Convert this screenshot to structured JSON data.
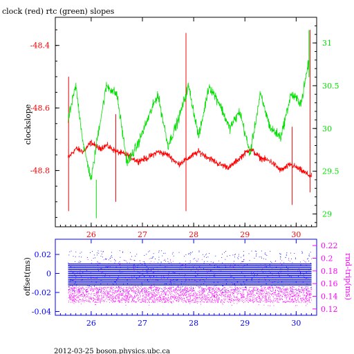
{
  "page_title": "clock (red) rtc (green) slopes",
  "footer": "2012-03-25  boson.physics.ubc.ca",
  "colors": {
    "clock": "#ff0000",
    "rtc": "#00e000",
    "offset": "#0000ff",
    "rndtrip": "#ff00ff",
    "frame": "#000000"
  },
  "chart_data": [
    {
      "type": "line",
      "title": "clock (red) rtc (green) slopes",
      "xlabel": "",
      "xlim": [
        25.3,
        30.4
      ],
      "x_ticks": [
        26,
        27,
        28,
        29,
        30
      ],
      "x_tick_labels": [
        "26",
        "27",
        "28",
        "29",
        "30"
      ],
      "left_axis": {
        "label": "clockslope",
        "ylim": [
          -48.98,
          -48.31
        ],
        "ticks": [
          -48.4,
          -48.6,
          -48.8
        ],
        "tick_labels": [
          "-48.4",
          "-48.6",
          "-48.8"
        ],
        "color": "#ff0000"
      },
      "right_axis": {
        "label": "",
        "ylim": [
          28.85,
          31.3
        ],
        "ticks": [
          29,
          29.5,
          30,
          30.5,
          31
        ],
        "tick_labels": [
          "29",
          "29.5",
          "30",
          "30.5",
          "31"
        ],
        "color": "#00e000"
      },
      "series": [
        {
          "axis": "left",
          "color": "#ff0000",
          "x": [
            25.55,
            25.7,
            25.85,
            26.0,
            26.15,
            26.3,
            26.5,
            26.7,
            26.9,
            27.1,
            27.3,
            27.5,
            27.7,
            27.9,
            28.1,
            28.3,
            28.5,
            28.7,
            28.9,
            29.1,
            29.3,
            29.5,
            29.7,
            29.9,
            30.1,
            30.3
          ],
          "values": [
            -48.76,
            -48.73,
            -48.74,
            -48.71,
            -48.73,
            -48.72,
            -48.74,
            -48.75,
            -48.77,
            -48.76,
            -48.74,
            -48.75,
            -48.78,
            -48.76,
            -48.74,
            -48.76,
            -48.78,
            -48.79,
            -48.76,
            -48.73,
            -48.76,
            -48.77,
            -48.8,
            -48.78,
            -48.8,
            -48.82
          ],
          "spikes": [
            {
              "x": 25.56,
              "values": [
                -48.5,
                -48.93
              ]
            },
            {
              "x": 26.48,
              "values": [
                -48.62,
                -48.9
              ]
            },
            {
              "x": 27.85,
              "values": [
                -48.36,
                -48.93
              ]
            },
            {
              "x": 29.92,
              "values": [
                -48.66,
                -48.91
              ]
            },
            {
              "x": 30.27,
              "values": [
                -48.35,
                -48.87
              ]
            }
          ]
        },
        {
          "axis": "right",
          "color": "#00e000",
          "x": [
            25.55,
            25.7,
            25.85,
            26.0,
            26.15,
            26.3,
            26.5,
            26.7,
            26.9,
            27.1,
            27.3,
            27.5,
            27.7,
            27.9,
            28.1,
            28.3,
            28.5,
            28.7,
            28.9,
            29.1,
            29.3,
            29.5,
            29.7,
            29.9,
            30.1,
            30.25
          ],
          "values": [
            30.1,
            30.5,
            29.8,
            29.4,
            30.0,
            30.5,
            30.4,
            29.6,
            29.8,
            30.1,
            30.4,
            29.8,
            30.1,
            30.5,
            29.9,
            30.5,
            30.3,
            30.0,
            30.2,
            29.7,
            30.4,
            30.0,
            29.9,
            30.4,
            30.3,
            30.8
          ],
          "spikes": [
            {
              "x": 26.1,
              "values": [
                29.4,
                28.95
              ]
            },
            {
              "x": 30.25,
              "values": [
                30.6,
                31.15
              ]
            }
          ]
        }
      ]
    },
    {
      "type": "scatter",
      "xlim": [
        25.3,
        30.4
      ],
      "x_ticks": [
        26,
        27,
        28,
        29,
        30
      ],
      "x_tick_labels": [
        "26",
        "27",
        "28",
        "29",
        "30"
      ],
      "left_axis": {
        "label": "offset(ms)",
        "ylim": [
          -0.044,
          0.036
        ],
        "ticks": [
          0.02,
          0,
          -0.02,
          -0.04
        ],
        "tick_labels": [
          "0.02",
          "0",
          "-0.02",
          "-0.04"
        ],
        "color": "#0000ff"
      },
      "right_axis": {
        "label": "rnd-trip(ms)",
        "ylim": [
          0.11,
          0.23
        ],
        "ticks": [
          0.22,
          0.2,
          0.18,
          0.16,
          0.14,
          0.12
        ],
        "tick_labels": [
          "0.22",
          "0.2",
          "0.18",
          "0.16",
          "0.14",
          "0.12"
        ],
        "color": "#ff00ff"
      },
      "series": [
        {
          "axis": "left",
          "color": "#0000ff",
          "x_range": [
            25.55,
            30.3
          ],
          "dense_band": [
            -0.012,
            0.01
          ],
          "sparse_band": [
            -0.02,
            0.024
          ]
        },
        {
          "axis": "right",
          "color": "#ff00ff",
          "x_range": [
            25.55,
            30.3
          ],
          "dense_band": [
            0.13,
            0.155
          ],
          "sparse_band": [
            0.125,
            0.2
          ]
        }
      ]
    }
  ]
}
